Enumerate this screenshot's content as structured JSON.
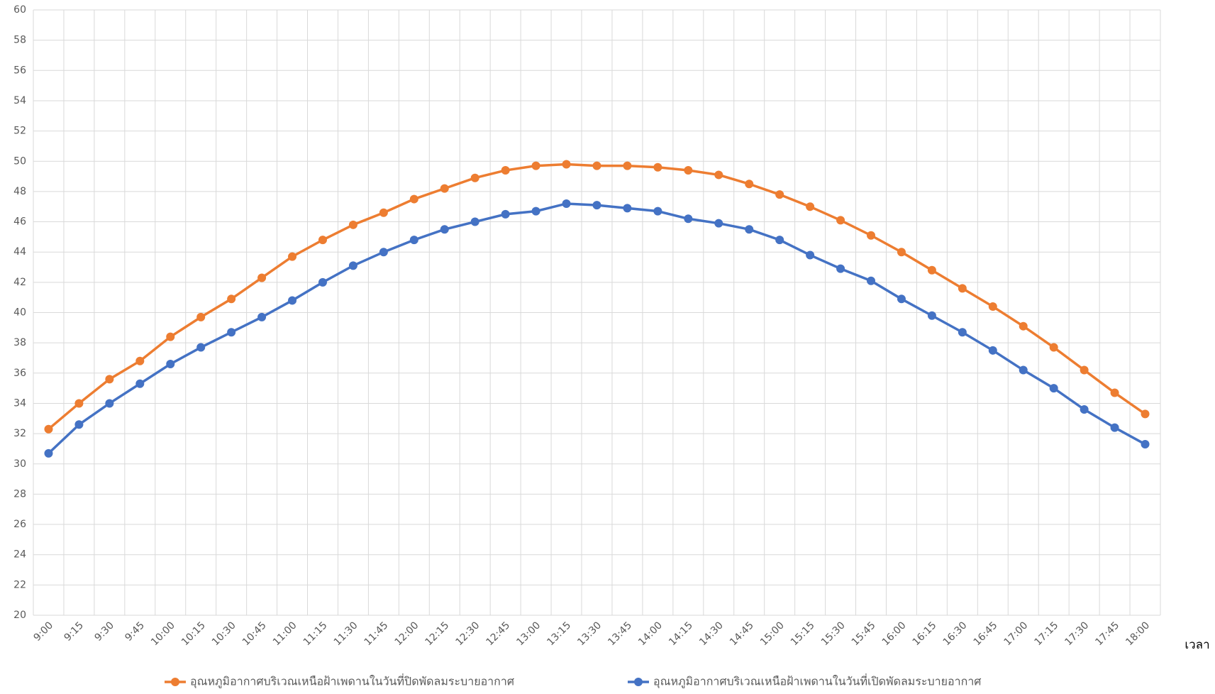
{
  "chart_data": {
    "type": "line",
    "x_label": "เวลา",
    "categories": [
      "9:00",
      "9:15",
      "9:30",
      "9:45",
      "10:00",
      "10:15",
      "10:30",
      "10:45",
      "11:00",
      "11:15",
      "11:30",
      "11:45",
      "12:00",
      "12:15",
      "12:30",
      "12:45",
      "13:00",
      "13:15",
      "13:30",
      "13:45",
      "14:00",
      "14:15",
      "14:30",
      "14:45",
      "15:00",
      "15:15",
      "15:30",
      "15:45",
      "16:00",
      "16:15",
      "16:30",
      "16:45",
      "17:00",
      "17:15",
      "17:30",
      "17:45",
      "18:00"
    ],
    "series": [
      {
        "name": "อุณหภูมิอากาศบริเวณเหนือฝ้าเพดานในวันที่ปิดพัดลมระบายอากาศ",
        "color": "#ed7d31",
        "values": [
          32.3,
          34.0,
          35.6,
          36.8,
          38.4,
          39.7,
          40.9,
          42.3,
          43.7,
          44.8,
          45.8,
          46.6,
          47.5,
          48.2,
          48.9,
          49.4,
          49.7,
          49.8,
          49.7,
          49.7,
          49.6,
          49.4,
          49.1,
          48.5,
          47.8,
          47.0,
          46.1,
          45.1,
          44.0,
          42.8,
          41.6,
          40.4,
          39.1,
          37.7,
          36.2,
          34.7,
          33.3
        ]
      },
      {
        "name": "อุณหภูมิอากาศบริเวณเหนือฝ้าเพดานในวันที่เปิดพัดลมระบายอากาศ",
        "color": "#4472c4",
        "values": [
          30.7,
          32.6,
          34.0,
          35.3,
          36.6,
          37.7,
          38.7,
          39.7,
          40.8,
          42.0,
          43.1,
          44.0,
          44.8,
          45.5,
          46.0,
          46.5,
          46.7,
          47.2,
          47.1,
          46.9,
          46.7,
          46.2,
          45.9,
          45.5,
          44.8,
          43.8,
          42.9,
          42.1,
          40.9,
          39.8,
          38.7,
          37.5,
          36.2,
          35.0,
          33.6,
          32.4,
          31.3
        ]
      }
    ],
    "ylim": [
      20,
      60
    ],
    "yticks": [
      20,
      22,
      24,
      26,
      28,
      30,
      32,
      34,
      36,
      38,
      40,
      42,
      44,
      46,
      48,
      50,
      52,
      54,
      56,
      58,
      60
    ],
    "grid": true
  }
}
